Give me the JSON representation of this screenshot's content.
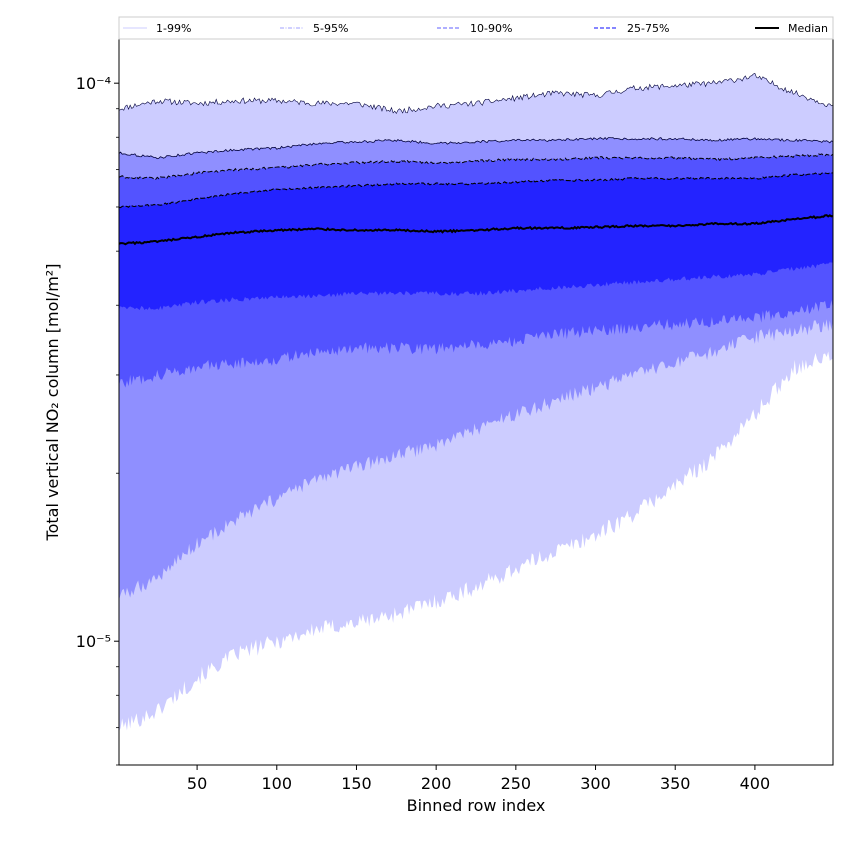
{
  "chart_data": {
    "type": "area",
    "title": "",
    "xlabel": "Binned row index",
    "ylabel": "Total vertical NO₂ column [mol/m²]",
    "xlim": [
      1,
      449
    ],
    "ylim": [
      6e-06,
      0.00012
    ],
    "yscale": "log",
    "x_ticks": [
      50,
      100,
      150,
      200,
      250,
      300,
      350,
      400
    ],
    "y_ticks": [
      {
        "value": 1e-05,
        "label": "10⁻⁵"
      },
      {
        "value": 0.0001,
        "label": "10⁻⁴"
      }
    ],
    "grid": false,
    "legend": {
      "placement": "top",
      "entries": [
        {
          "label": "1-99%",
          "color": "#d8d8ff",
          "style": "solid"
        },
        {
          "label": "5-95%",
          "color": "#b4b4ff",
          "style": "dashdot"
        },
        {
          "label": "10-90%",
          "color": "#7f7fff",
          "style": "dashed"
        },
        {
          "label": "25-75%",
          "color": "#3c3cff",
          "style": "dashed"
        },
        {
          "label": "Median",
          "color": "#000000",
          "style": "solid"
        }
      ]
    },
    "x": [
      1,
      25,
      50,
      75,
      100,
      125,
      150,
      175,
      200,
      225,
      250,
      275,
      300,
      325,
      350,
      375,
      400,
      425,
      449
    ],
    "series": [
      {
        "name": "1-99%",
        "color": "#ccccff",
        "upper": [
          9e-05,
          9.3e-05,
          9.2e-05,
          9.3e-05,
          9.3e-05,
          9.2e-05,
          9.2e-05,
          8.9e-05,
          9.1e-05,
          9.2e-05,
          9.4e-05,
          9.6e-05,
          9.5e-05,
          9.8e-05,
          9.9e-05,
          0.0001,
          0.000103,
          9.6e-05,
          9.1e-05
        ],
        "lower": [
          7e-06,
          7.5e-06,
          8.6e-06,
          9.5e-06,
          1e-05,
          1.05e-05,
          1.08e-05,
          1.12e-05,
          1.18e-05,
          1.25e-05,
          1.35e-05,
          1.45e-05,
          1.55e-05,
          1.7e-05,
          1.9e-05,
          2.15e-05,
          2.55e-05,
          3.1e-05,
          3.25e-05
        ]
      },
      {
        "name": "5-95%",
        "color": "#8f8fff",
        "upper": [
          7.5e-05,
          7.35e-05,
          7.5e-05,
          7.6e-05,
          7.65e-05,
          7.8e-05,
          7.85e-05,
          7.9e-05,
          7.8e-05,
          7.85e-05,
          7.9e-05,
          7.9e-05,
          7.95e-05,
          7.95e-05,
          7.95e-05,
          7.9e-05,
          7.95e-05,
          7.9e-05,
          7.85e-05
        ],
        "lower": [
          1.2e-05,
          1.3e-05,
          1.5e-05,
          1.65e-05,
          1.8e-05,
          1.95e-05,
          2.05e-05,
          2.15e-05,
          2.25e-05,
          2.4e-05,
          2.55e-05,
          2.7e-05,
          2.85e-05,
          3e-05,
          3.15e-05,
          3.3e-05,
          3.5e-05,
          3.6e-05,
          3.7e-05
        ]
      },
      {
        "name": "10-90%",
        "color": "#5353ff",
        "upper": [
          6.8e-05,
          6.75e-05,
          6.9e-05,
          7e-05,
          7.05e-05,
          7.15e-05,
          7.2e-05,
          7.25e-05,
          7.2e-05,
          7.25e-05,
          7.3e-05,
          7.3e-05,
          7.35e-05,
          7.35e-05,
          7.35e-05,
          7.3e-05,
          7.35e-05,
          7.4e-05,
          7.45e-05
        ],
        "lower": [
          2.9e-05,
          3e-05,
          3.1e-05,
          3.15e-05,
          3.2e-05,
          3.3e-05,
          3.35e-05,
          3.35e-05,
          3.35e-05,
          3.4e-05,
          3.45e-05,
          3.55e-05,
          3.6e-05,
          3.65e-05,
          3.7e-05,
          3.75e-05,
          3.8e-05,
          3.9e-05,
          4e-05
        ]
      },
      {
        "name": "25-75%",
        "color": "#2323ff",
        "upper": [
          6e-05,
          6.05e-05,
          6.2e-05,
          6.35e-05,
          6.45e-05,
          6.5e-05,
          6.55e-05,
          6.6e-05,
          6.6e-05,
          6.6e-05,
          6.65e-05,
          6.7e-05,
          6.7e-05,
          6.75e-05,
          6.75e-05,
          6.75e-05,
          6.75e-05,
          6.85e-05,
          6.9e-05
        ],
        "lower": [
          3.95e-05,
          3.95e-05,
          4.05e-05,
          4.1e-05,
          4.15e-05,
          4.15e-05,
          4.2e-05,
          4.2e-05,
          4.2e-05,
          4.2e-05,
          4.25e-05,
          4.3e-05,
          4.35e-05,
          4.4e-05,
          4.45e-05,
          4.5e-05,
          4.55e-05,
          4.65e-05,
          4.75e-05
        ]
      },
      {
        "name": "Median",
        "color": "#000000",
        "values": [
          5.15e-05,
          5.2e-05,
          5.3e-05,
          5.4e-05,
          5.45e-05,
          5.48e-05,
          5.45e-05,
          5.45e-05,
          5.42e-05,
          5.45e-05,
          5.5e-05,
          5.5e-05,
          5.52e-05,
          5.55e-05,
          5.55e-05,
          5.6e-05,
          5.6e-05,
          5.7e-05,
          5.8e-05
        ]
      }
    ]
  }
}
